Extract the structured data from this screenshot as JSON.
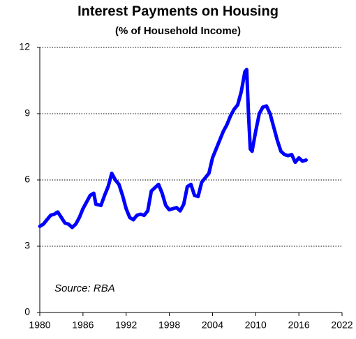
{
  "chart_data": {
    "type": "line",
    "title": "Interest Payments on Housing",
    "subtitle": "(% of Household Income)",
    "annotation": "Source: RBA",
    "x": [
      1980,
      1980.5,
      1981,
      1981.5,
      1982,
      1982.5,
      1983,
      1983.5,
      1984,
      1984.5,
      1985,
      1985.5,
      1986,
      1986.5,
      1987,
      1987.5,
      1987.8,
      1988.5,
      1989,
      1989.5,
      1990,
      1990.5,
      1991,
      1991.5,
      1992,
      1992.5,
      1993,
      1993.5,
      1994,
      1994.5,
      1995,
      1995.5,
      1996,
      1996.5,
      1997,
      1997.5,
      1998,
      1998.5,
      1999,
      1999.5,
      2000,
      2000.5,
      2001,
      2001.5,
      2002,
      2002.5,
      2003,
      2003.5,
      2004,
      2004.5,
      2005,
      2005.5,
      2006,
      2006.5,
      2007,
      2007.5,
      2008,
      2008.5,
      2008.75,
      2009,
      2009.25,
      2009.5,
      2010,
      2010.5,
      2011,
      2011.5,
      2012,
      2012.5,
      2013,
      2013.5,
      2014,
      2014.5,
      2015,
      2015.5,
      2016,
      2016.5,
      2017
    ],
    "series": [
      {
        "name": "Interest payments",
        "color": "#0000ff",
        "values": [
          3.9,
          4.0,
          4.2,
          4.4,
          4.45,
          4.55,
          4.3,
          4.05,
          4.0,
          3.85,
          4.0,
          4.3,
          4.7,
          5.0,
          5.3,
          5.4,
          4.9,
          4.85,
          5.3,
          5.7,
          6.3,
          6.0,
          5.8,
          5.3,
          4.7,
          4.3,
          4.2,
          4.4,
          4.45,
          4.4,
          4.6,
          5.5,
          5.65,
          5.8,
          5.4,
          4.85,
          4.65,
          4.7,
          4.75,
          4.6,
          4.9,
          5.7,
          5.8,
          5.3,
          5.25,
          5.9,
          6.1,
          6.3,
          7.0,
          7.4,
          7.8,
          8.2,
          8.5,
          8.9,
          9.2,
          9.4,
          10.0,
          10.9,
          11.0,
          9.0,
          7.4,
          7.3,
          8.2,
          9.0,
          9.3,
          9.35,
          9.0,
          8.4,
          7.8,
          7.3,
          7.15,
          7.1,
          7.15,
          6.8,
          7.0,
          6.85,
          6.9
        ]
      }
    ],
    "xlim": [
      1980,
      2022
    ],
    "xticks": [
      1980,
      1986,
      1992,
      1998,
      2004,
      2010,
      2016,
      2022
    ],
    "ylim": [
      0,
      12
    ],
    "yticks": [
      0,
      3,
      6,
      9,
      12
    ],
    "grid": true
  }
}
